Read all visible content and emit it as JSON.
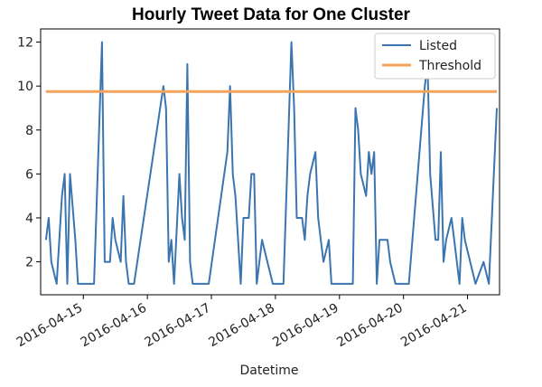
{
  "chart_data": {
    "type": "line",
    "title": "Hourly Tweet Data for One Cluster",
    "xlabel": "Datetime",
    "ylabel": "",
    "xlim": [
      "2016-04-14T08:00",
      "2016-04-21T12:00"
    ],
    "ylim": [
      0.5,
      12.6
    ],
    "xticks": [
      "2016-04-15",
      "2016-04-16",
      "2016-04-17",
      "2016-04-18",
      "2016-04-19",
      "2016-04-20",
      "2016-04-21"
    ],
    "yticks": [
      2,
      4,
      6,
      8,
      10,
      12
    ],
    "grid": false,
    "legend": "top-right",
    "series": [
      {
        "name": "Listed",
        "color": "#3b75af",
        "points": [
          [
            "2016-04-14T10:00",
            3
          ],
          [
            "2016-04-14T11:00",
            4
          ],
          [
            "2016-04-14T12:00",
            2
          ],
          [
            "2016-04-14T14:00",
            1
          ],
          [
            "2016-04-14T16:00",
            5
          ],
          [
            "2016-04-14T17:00",
            6
          ],
          [
            "2016-04-14T18:00",
            1
          ],
          [
            "2016-04-14T19:00",
            6
          ],
          [
            "2016-04-14T21:00",
            3
          ],
          [
            "2016-04-14T22:00",
            1
          ],
          [
            "2016-04-15T04:00",
            1
          ],
          [
            "2016-04-15T07:00",
            12
          ],
          [
            "2016-04-15T08:00",
            2
          ],
          [
            "2016-04-15T10:00",
            2
          ],
          [
            "2016-04-15T11:00",
            4
          ],
          [
            "2016-04-15T12:00",
            3
          ],
          [
            "2016-04-15T14:00",
            2
          ],
          [
            "2016-04-15T15:00",
            5
          ],
          [
            "2016-04-15T16:00",
            2
          ],
          [
            "2016-04-15T17:00",
            1
          ],
          [
            "2016-04-15T19:00",
            1
          ],
          [
            "2016-04-16T06:00",
            10
          ],
          [
            "2016-04-16T07:00",
            9
          ],
          [
            "2016-04-16T08:00",
            2
          ],
          [
            "2016-04-16T09:00",
            3
          ],
          [
            "2016-04-16T10:00",
            1
          ],
          [
            "2016-04-16T12:00",
            6
          ],
          [
            "2016-04-16T13:00",
            4
          ],
          [
            "2016-04-16T14:00",
            3
          ],
          [
            "2016-04-16T15:00",
            11
          ],
          [
            "2016-04-16T16:00",
            2
          ],
          [
            "2016-04-16T17:00",
            1
          ],
          [
            "2016-04-16T23:00",
            1
          ],
          [
            "2016-04-17T06:00",
            7
          ],
          [
            "2016-04-17T07:00",
            10
          ],
          [
            "2016-04-17T08:00",
            6
          ],
          [
            "2016-04-17T09:00",
            5
          ],
          [
            "2016-04-17T11:00",
            1
          ],
          [
            "2016-04-17T12:00",
            4
          ],
          [
            "2016-04-17T14:00",
            4
          ],
          [
            "2016-04-17T15:00",
            6
          ],
          [
            "2016-04-17T16:00",
            6
          ],
          [
            "2016-04-17T17:00",
            1
          ],
          [
            "2016-04-17T19:00",
            3
          ],
          [
            "2016-04-17T21:00",
            2
          ],
          [
            "2016-04-17T23:00",
            1
          ],
          [
            "2016-04-18T03:00",
            1
          ],
          [
            "2016-04-18T06:00",
            12
          ],
          [
            "2016-04-18T07:00",
            9
          ],
          [
            "2016-04-18T08:00",
            4
          ],
          [
            "2016-04-18T10:00",
            4
          ],
          [
            "2016-04-18T11:00",
            3
          ],
          [
            "2016-04-18T12:00",
            5
          ],
          [
            "2016-04-18T13:00",
            6
          ],
          [
            "2016-04-18T15:00",
            7
          ],
          [
            "2016-04-18T16:00",
            4
          ],
          [
            "2016-04-18T18:00",
            2
          ],
          [
            "2016-04-18T20:00",
            3
          ],
          [
            "2016-04-18T21:00",
            1
          ],
          [
            "2016-04-19T05:00",
            1
          ],
          [
            "2016-04-19T06:00",
            9
          ],
          [
            "2016-04-19T07:00",
            8
          ],
          [
            "2016-04-19T08:00",
            6
          ],
          [
            "2016-04-19T10:00",
            5
          ],
          [
            "2016-04-19T11:00",
            7
          ],
          [
            "2016-04-19T12:00",
            6
          ],
          [
            "2016-04-19T13:00",
            7
          ],
          [
            "2016-04-19T14:00",
            1
          ],
          [
            "2016-04-19T15:00",
            3
          ],
          [
            "2016-04-19T18:00",
            3
          ],
          [
            "2016-04-19T19:00",
            2
          ],
          [
            "2016-04-19T21:00",
            1
          ],
          [
            "2016-04-20T02:00",
            1
          ],
          [
            "2016-04-20T08:00",
            10
          ],
          [
            "2016-04-20T09:00",
            11
          ],
          [
            "2016-04-20T10:00",
            6
          ],
          [
            "2016-04-20T12:00",
            3
          ],
          [
            "2016-04-20T13:00",
            3
          ],
          [
            "2016-04-20T14:00",
            7
          ],
          [
            "2016-04-20T15:00",
            2
          ],
          [
            "2016-04-20T16:00",
            3
          ],
          [
            "2016-04-20T18:00",
            4
          ],
          [
            "2016-04-20T19:00",
            3
          ],
          [
            "2016-04-20T21:00",
            1
          ],
          [
            "2016-04-20T22:00",
            4
          ],
          [
            "2016-04-20T23:00",
            3
          ],
          [
            "2016-04-21T03:00",
            1
          ],
          [
            "2016-04-21T06:00",
            2
          ],
          [
            "2016-04-21T08:00",
            1
          ],
          [
            "2016-04-21T11:00",
            9
          ]
        ]
      },
      {
        "name": "Threshold",
        "color": "#f4a35b",
        "points": [
          [
            "2016-04-14T10:00",
            9.75
          ],
          [
            "2016-04-21T11:00",
            9.75
          ]
        ]
      }
    ]
  }
}
